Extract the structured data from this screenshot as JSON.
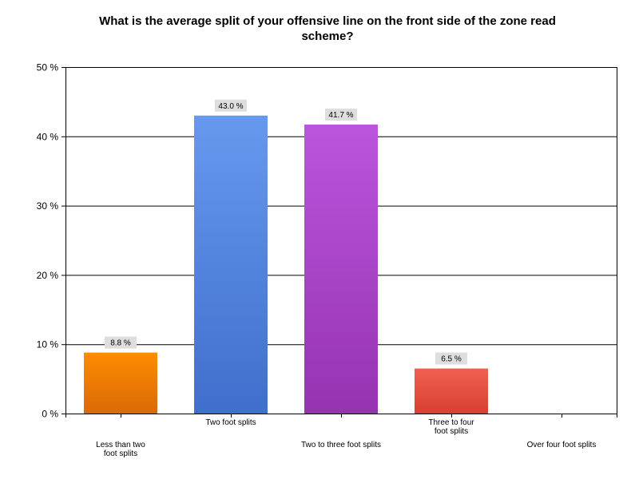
{
  "chart_data": {
    "type": "bar",
    "title": "What is the average split of your offensive line on the front side of the zone read scheme?",
    "title_lines": [
      "What is the average split of your offensive line on the front side of the zone read",
      "scheme?"
    ],
    "xlabel": "",
    "ylabel": "",
    "ylim": [
      0,
      50
    ],
    "yticks": [
      0,
      10,
      20,
      30,
      40,
      50
    ],
    "ytick_suffix": " %",
    "grid": true,
    "categories": [
      "Less than two foot splits",
      "Two foot splits",
      "Two to three foot splits",
      "Three to four foot splits",
      "Over four foot splits"
    ],
    "category_lines": [
      [
        "Less than two",
        "foot splits"
      ],
      [
        "Two foot splits"
      ],
      [
        "Two to three foot splits"
      ],
      [
        "Three to four",
        "foot splits"
      ],
      [
        "Over four foot splits"
      ]
    ],
    "values": [
      8.8,
      43.0,
      41.7,
      6.5,
      0
    ],
    "data_labels": [
      "8.8 %",
      "43.0 %",
      "41.7 %",
      "6.5 %",
      ""
    ],
    "colors": [
      [
        "#ff8c00",
        "#d96a08"
      ],
      [
        "#6699ee",
        "#3f6fcc"
      ],
      [
        "#bb55dd",
        "#9533b0"
      ],
      [
        "#f06050",
        "#d84030"
      ],
      [
        "#999999",
        "#777777"
      ]
    ]
  }
}
